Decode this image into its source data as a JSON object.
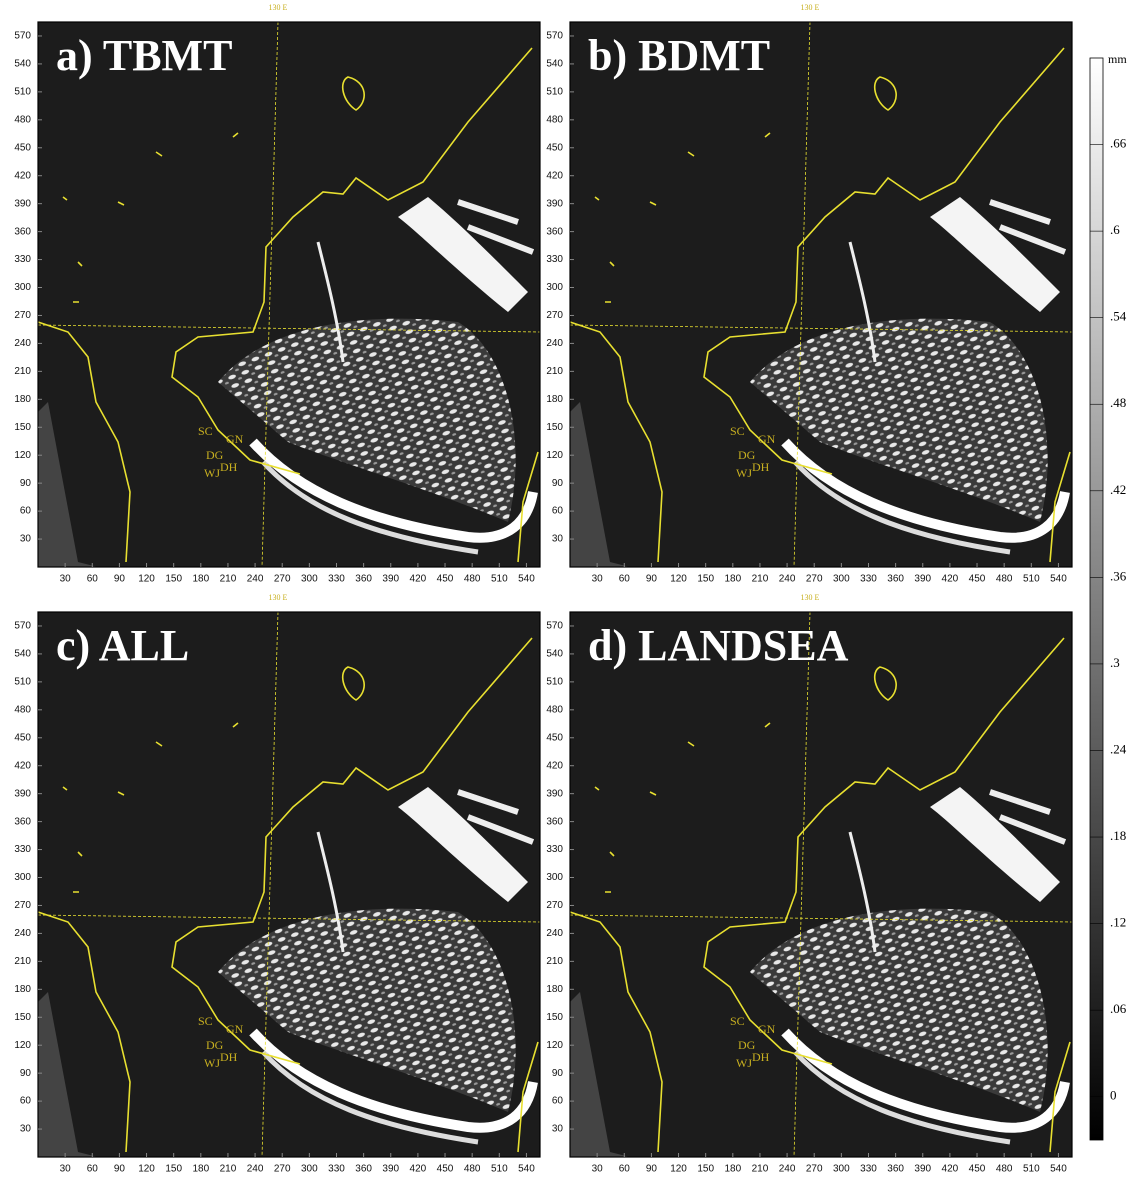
{
  "panels": [
    {
      "title": "a) TBMT"
    },
    {
      "title": "b) BDMT"
    },
    {
      "title": "c) ALL"
    },
    {
      "title": "d) LANDSEA"
    }
  ],
  "axes": {
    "meridian_label": "130 E",
    "xlim": [
      0,
      555
    ],
    "ylim": [
      0,
      585
    ],
    "xticks": [
      30,
      60,
      90,
      120,
      150,
      180,
      210,
      240,
      270,
      300,
      330,
      360,
      390,
      420,
      450,
      480,
      510,
      540
    ],
    "yticks": [
      30,
      60,
      90,
      120,
      150,
      180,
      210,
      240,
      270,
      300,
      330,
      360,
      390,
      420,
      450,
      480,
      510,
      540,
      570
    ]
  },
  "station_labels": [
    "SC",
    "GN",
    "DG",
    "DH",
    "WJ"
  ],
  "colorbar": {
    "unit": "mm",
    "lim": [
      -0.03,
      0.72
    ],
    "ticks": [
      0,
      {
        "value": 0.06,
        "label": ".06"
      },
      {
        "value": 0.12,
        "label": ".12"
      },
      {
        "value": 0.18,
        "label": ".18"
      },
      {
        "value": 0.24,
        "label": ".24"
      },
      {
        "value": 0.3,
        "label": ".3"
      },
      {
        "value": 0.36,
        "label": ".36"
      },
      {
        "value": 0.42,
        "label": ".42"
      },
      {
        "value": 0.48,
        "label": ".48"
      },
      {
        "value": 0.54,
        "label": ".54"
      },
      {
        "value": 0.6,
        "label": ".6"
      },
      {
        "value": 0.66,
        "label": ".66"
      }
    ]
  }
}
